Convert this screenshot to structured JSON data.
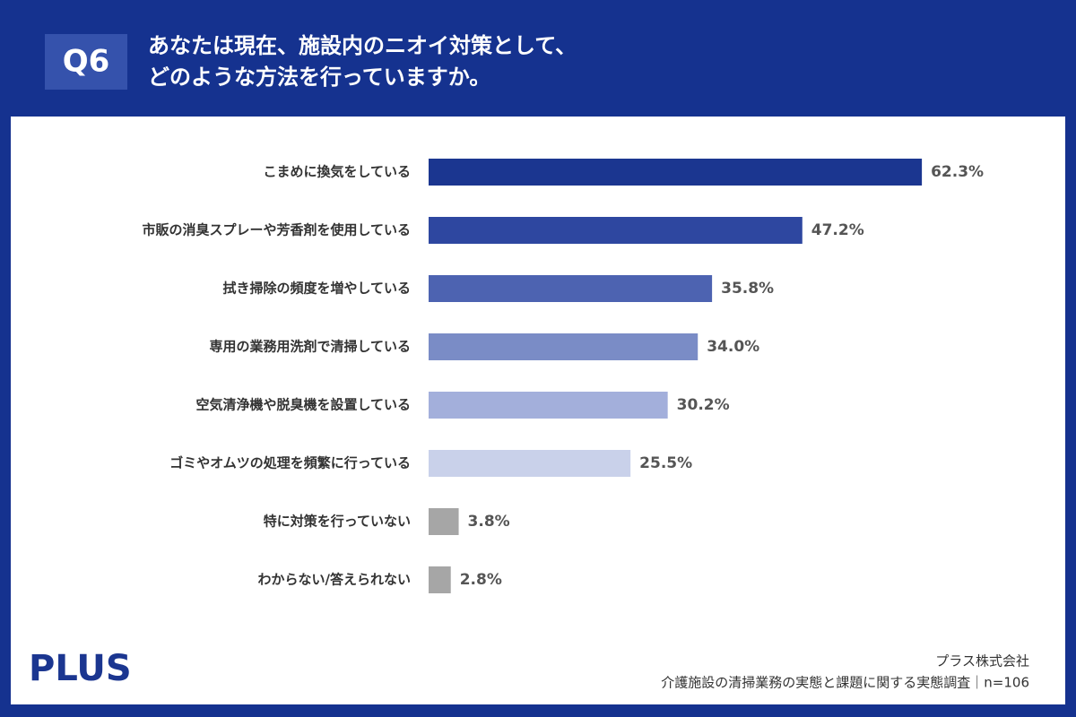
{
  "chart_data": {
    "type": "bar",
    "orientation": "horizontal",
    "badge": "Q6",
    "title": [
      "あなたは現在、施設内のニオイ対策として、",
      "どのような方法を行っていますか。"
    ],
    "categories": [
      "こまめに換気をしている",
      "市販の消臭スプレーや芳香剤を使用している",
      "拭き掃除の頻度を増やしている",
      "専用の業務用洗剤で清掃している",
      "空気清浄機や脱臭機を設置している",
      "ゴミやオムツの処理を頻繁に行っている",
      "特に対策を行っていない",
      "わからない/答えられない"
    ],
    "values": [
      62.3,
      47.2,
      35.8,
      34.0,
      30.2,
      25.5,
      3.8,
      2.8
    ],
    "value_labels": [
      "62.3%",
      "47.2%",
      "35.8%",
      "34.0%",
      "30.2%",
      "25.5%",
      "3.8%",
      "2.8%"
    ],
    "colors": [
      "#1b3690",
      "#2e47a0",
      "#4d63b1",
      "#7a8cc6",
      "#a3afdb",
      "#c9d1ea",
      "#a6a6a6",
      "#a6a6a6"
    ],
    "logo": "PLUS",
    "source": [
      "プラス株式会社",
      "介護施設の清掃業務の実態と課題に関する実態調査｜n=106"
    ]
  }
}
